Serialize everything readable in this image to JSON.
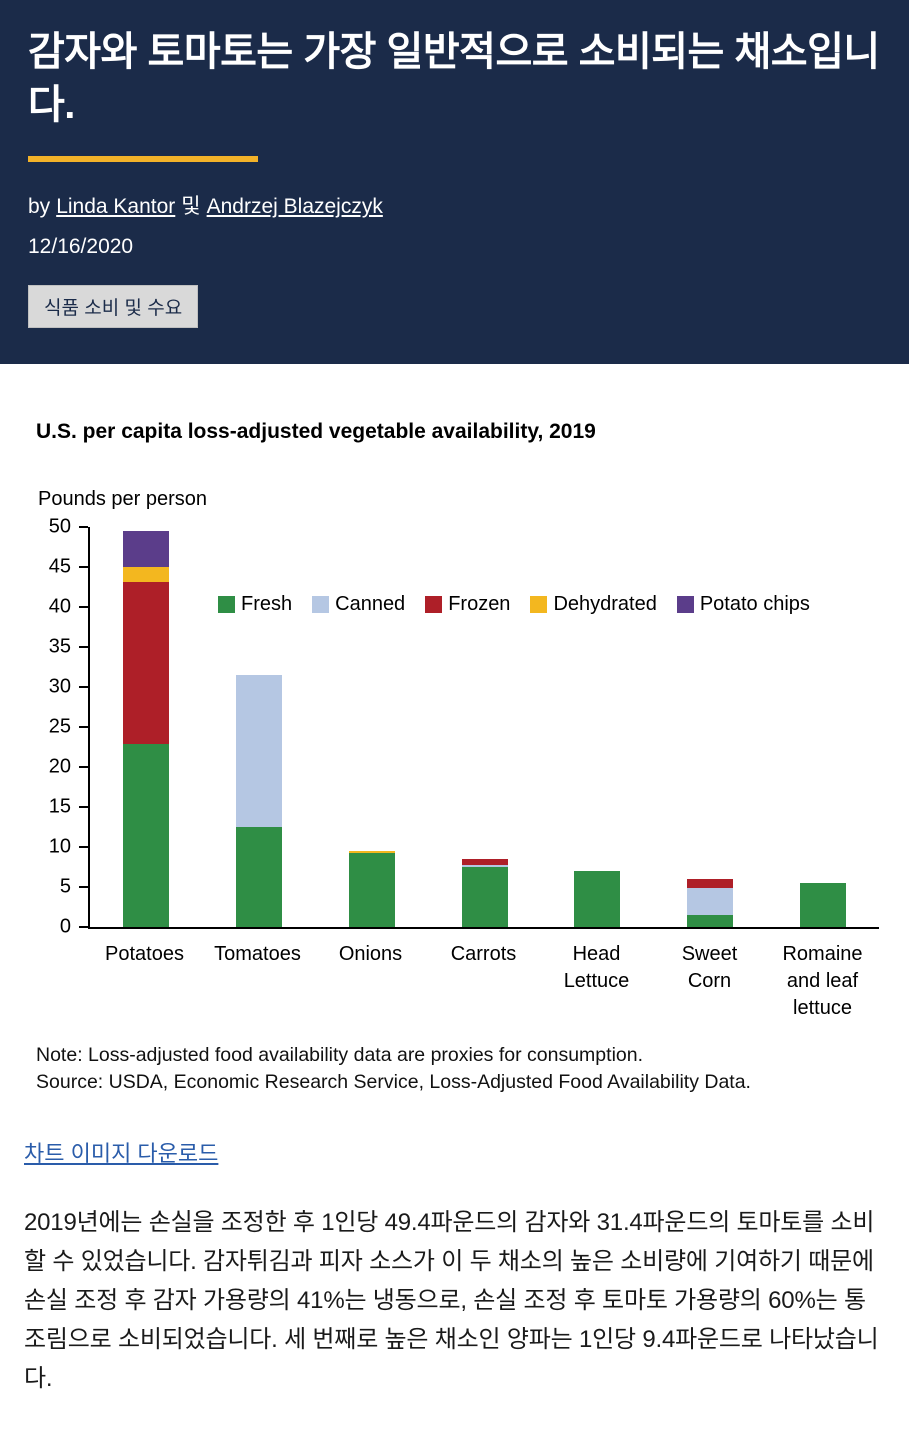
{
  "header": {
    "title": "감자와 토마토는 가장 일반적으로 소비되는 채소입니다.",
    "byline_prefix": "by",
    "authors": [
      {
        "name": "Linda Kantor"
      },
      {
        "name": "Andrzej Blazejczyk"
      }
    ],
    "authors_separator": "및",
    "date": "12/16/2020",
    "tag": "식품 소비 및 수요"
  },
  "chart_data": {
    "type": "bar",
    "stacked": true,
    "title": "U.S. per capita loss-adjusted vegetable availability, 2019",
    "ylabel": "Pounds per person",
    "ylim": [
      0,
      50
    ],
    "ytick_step": 5,
    "grid": false,
    "legend_position": "inside-top",
    "categories": [
      "Potatoes",
      "Tomatoes",
      "Onions",
      "Carrots",
      "Head Lettuce",
      "Sweet Corn",
      "Romaine and leaf lettuce"
    ],
    "series": [
      {
        "name": "Fresh",
        "color": "#2f8e45",
        "values": [
          22.8,
          12.5,
          9.2,
          7.4,
          7.0,
          1.5,
          5.5
        ]
      },
      {
        "name": "Canned",
        "color": "#b5c7e3",
        "values": [
          0,
          18.9,
          0,
          0.3,
          0,
          3.3,
          0
        ]
      },
      {
        "name": "Frozen",
        "color": "#ae1f28",
        "values": [
          20.3,
          0,
          0,
          0.7,
          0,
          1.2,
          0
        ]
      },
      {
        "name": "Dehydrated",
        "color": "#f3b71f",
        "values": [
          1.9,
          0,
          0.2,
          0,
          0,
          0,
          0
        ]
      },
      {
        "name": "Potato chips",
        "color": "#5b3d8a",
        "values": [
          4.4,
          0,
          0,
          0,
          0,
          0,
          0
        ]
      }
    ],
    "note": "Note: Loss-adjusted food availability data are proxies for consumption.",
    "source": "Source: USDA, Economic Research Service, Loss-Adjusted Food Availability Data."
  },
  "download_link": "차트 이미지 다운로드",
  "body_paragraph": "2019년에는 손실을 조정한 후 1인당 49.4파운드의 감자와 31.4파운드의 토마토를 소비할 수 있었습니다. 감자튀김과 피자 소스가 이 두 채소의 높은 소비량에 기여하기 때문에 손실 조정 후 감자 가용량의 41%는 냉동으로, 손실 조정 후 토마토 가용량의 60%는 통조림으로 소비되었습니다. 세 번째로 높은 채소인 양파는 1인당 9.4파운드로 나타났습니다."
}
